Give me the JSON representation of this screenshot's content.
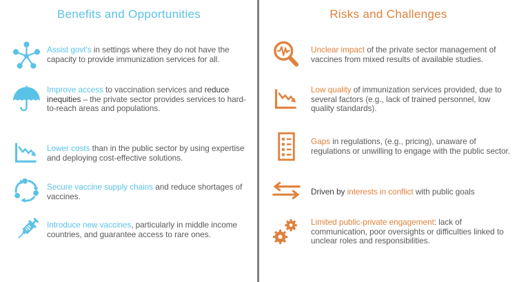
{
  "divider_color": "#7F7F7F",
  "text_color": "#58595B",
  "columns": {
    "left": {
      "title": "Benefits and Opportunities",
      "accent_color": "#5BC2E7",
      "items": [
        {
          "icon": "molecule-icon",
          "segments": [
            {
              "style": "accent",
              "text": "Assist govt's "
            },
            {
              "style": "body",
              "text": "in settings where they do not have the capacity to provide immunization services for all."
            }
          ]
        },
        {
          "icon": "umbrella-icon",
          "segments": [
            {
              "style": "accent",
              "text": "Improve access "
            },
            {
              "style": "body",
              "text": "to vaccination services and "
            },
            {
              "style": "dark",
              "text": "reduce inequities"
            },
            {
              "style": "body",
              "text": " – the private sector provides services to hard-to-reach areas and populations."
            }
          ]
        },
        {
          "icon": "chart-decline-icon",
          "segments": [
            {
              "style": "accent",
              "text": "Lower costs "
            },
            {
              "style": "body",
              "text": "than in the public sector by using expertise and deploying cost-effective solutions."
            }
          ]
        },
        {
          "icon": "cycle-icon",
          "segments": [
            {
              "style": "accent",
              "text": "Secure vaccine supply chains "
            },
            {
              "style": "body",
              "text": "and reduce shortages of vaccines."
            }
          ]
        },
        {
          "icon": "syringe-icon",
          "segments": [
            {
              "style": "accent",
              "text": "Introduce new vaccines"
            },
            {
              "style": "body",
              "text": ", particularly in middle income countries, and guarantee access to rare ones."
            }
          ]
        }
      ]
    },
    "right": {
      "title": "Risks and Challenges",
      "accent_color": "#E0813D",
      "items": [
        {
          "icon": "magnifier-pulse-icon",
          "segments": [
            {
              "style": "accent",
              "text": "Unclear impact "
            },
            {
              "style": "body",
              "text": "of the private sector management of vaccines from mixed results of available studies."
            }
          ]
        },
        {
          "icon": "chart-decline-icon",
          "segments": [
            {
              "style": "accent",
              "text": "Low quality "
            },
            {
              "style": "body",
              "text": "of immunization services provided, due to several factors (e.g., lack of trained personnel, low quality standards)."
            }
          ]
        },
        {
          "icon": "checklist-icon",
          "segments": [
            {
              "style": "accent",
              "text": "Gaps "
            },
            {
              "style": "body",
              "text": "in regulations, (e.g., pricing), unaware of regulations or unwilling to engage with the public sector."
            }
          ]
        },
        {
          "icon": "arrows-swap-icon",
          "segments": [
            {
              "style": "dark",
              "text": "Driven by "
            },
            {
              "style": "accent",
              "text": "interests in conflict "
            },
            {
              "style": "body",
              "text": "with public goals"
            }
          ]
        },
        {
          "icon": "gears-icon",
          "segments": [
            {
              "style": "accent",
              "text": "Limited public-private engagement"
            },
            {
              "style": "body",
              "text": ": lack of communication, poor oversights or difficulties linked to unclear roles and responsibilities."
            }
          ]
        }
      ]
    }
  }
}
